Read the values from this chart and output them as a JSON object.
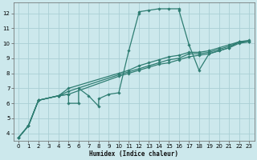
{
  "xlabel": "Humidex (Indice chaleur)",
  "bg_color": "#cce8ec",
  "grid_color": "#aacfd5",
  "line_color": "#2e7d72",
  "xlim": [
    -0.5,
    23.5
  ],
  "ylim": [
    3.5,
    12.7
  ],
  "xticks": [
    0,
    1,
    2,
    3,
    4,
    5,
    6,
    7,
    8,
    9,
    10,
    11,
    12,
    13,
    14,
    15,
    16,
    17,
    18,
    19,
    20,
    21,
    22,
    23
  ],
  "yticks": [
    4,
    5,
    6,
    7,
    8,
    9,
    10,
    11,
    12
  ],
  "series": [
    {
      "x": [
        0,
        1,
        2,
        4,
        5,
        5,
        6,
        6,
        7,
        8,
        8,
        9,
        10,
        11,
        12,
        12,
        13,
        14,
        15,
        16,
        16,
        17,
        18,
        19,
        20,
        21,
        22,
        23
      ],
      "y": [
        3.7,
        4.5,
        6.2,
        6.5,
        6.6,
        6.0,
        6.0,
        7.0,
        6.5,
        5.8,
        6.3,
        6.6,
        6.7,
        9.5,
        12.0,
        12.1,
        12.2,
        12.3,
        12.3,
        12.3,
        12.2,
        9.9,
        8.2,
        9.3,
        9.5,
        9.7,
        10.1,
        10.1
      ]
    },
    {
      "x": [
        0,
        1,
        2,
        4,
        5,
        10,
        11,
        12,
        13,
        14,
        15,
        16,
        17,
        18,
        19,
        20,
        21,
        22,
        23
      ],
      "y": [
        3.7,
        4.5,
        6.2,
        6.5,
        6.6,
        7.8,
        8.0,
        8.2,
        8.4,
        8.6,
        8.7,
        8.9,
        9.1,
        9.2,
        9.3,
        9.5,
        9.7,
        10.0,
        10.1
      ]
    },
    {
      "x": [
        0,
        1,
        2,
        4,
        5,
        10,
        11,
        12,
        13,
        14,
        15,
        16,
        17,
        18,
        19,
        20,
        21,
        22,
        23
      ],
      "y": [
        3.7,
        4.5,
        6.2,
        6.5,
        6.8,
        7.9,
        8.1,
        8.3,
        8.5,
        8.7,
        8.9,
        9.0,
        9.3,
        9.3,
        9.4,
        9.6,
        9.8,
        10.1,
        10.1
      ]
    },
    {
      "x": [
        0,
        1,
        2,
        4,
        5,
        10,
        11,
        12,
        13,
        14,
        15,
        16,
        17,
        18,
        19,
        20,
        21,
        22,
        23
      ],
      "y": [
        3.7,
        4.5,
        6.2,
        6.5,
        7.0,
        8.0,
        8.2,
        8.5,
        8.7,
        8.9,
        9.1,
        9.2,
        9.4,
        9.4,
        9.5,
        9.7,
        9.9,
        10.1,
        10.2
      ]
    }
  ]
}
